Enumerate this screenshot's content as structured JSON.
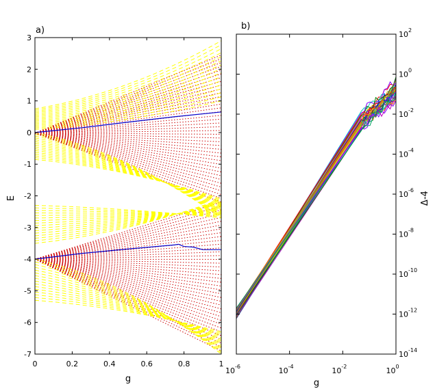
{
  "chart_data": [
    {
      "panel_label": "a)",
      "type": "line",
      "xlabel": "g",
      "ylabel": "E",
      "xlim": [
        0,
        1
      ],
      "ylim": [
        -7,
        3
      ],
      "x_ticks": [
        "0",
        "0.2",
        "0.4",
        "0.6",
        "0.8",
        "1"
      ],
      "y_ticks": [
        "3",
        "2",
        "1",
        "0",
        "-1",
        "-2",
        "-3",
        "-4",
        "-5",
        "-6",
        "-7"
      ],
      "grid": false,
      "colors": {
        "solid": "#0000cc",
        "dotted": "#cc0000",
        "dashed": "#ffff00"
      },
      "series": [
        {
          "style": "solid",
          "color": "#0000cc",
          "points": [
            [
              0,
              0.0
            ],
            [
              0.25,
              0.15
            ],
            [
              0.5,
              0.33
            ],
            [
              0.75,
              0.5
            ],
            [
              1,
              0.65
            ]
          ]
        },
        {
          "style": "solid",
          "color": "#0000cc",
          "points": [
            [
              0,
              -4.0
            ],
            [
              0.25,
              -3.82
            ],
            [
              0.5,
              -3.68
            ],
            [
              0.75,
              -3.55
            ],
            [
              0.77,
              -3.53
            ],
            [
              0.8,
              -3.6
            ],
            [
              0.85,
              -3.62
            ],
            [
              0.9,
              -3.7
            ],
            [
              1,
              -3.7
            ]
          ]
        },
        {
          "style": "dotted-fan",
          "color": "#cc0000",
          "origin": [
            0,
            -0.02
          ],
          "endpoints_at_g1": [
            2.45,
            -2.2
          ],
          "count": 40
        },
        {
          "style": "dotted-fan",
          "color": "#cc0000",
          "origin": [
            0,
            -4.0
          ],
          "endpoints_at_g1": [
            -2.2,
            -6.9
          ],
          "count": 40
        },
        {
          "style": "dashed-band",
          "color": "#ffff00",
          "origin_range": [
            0.1,
            0.75
          ],
          "end_range_at_g1": [
            1.0,
            2.9
          ],
          "count": 16
        },
        {
          "style": "dashed-band",
          "color": "#ffff00",
          "origin_range": [
            -0.85,
            0.0
          ],
          "end_range_at_g1": [
            -2.1,
            -2.7
          ],
          "count": 16
        },
        {
          "style": "dashed-band",
          "color": "#ffff00",
          "origin_range": [
            -3.5,
            -2.3
          ],
          "end_range_at_g1": [
            -2.1,
            -2.7
          ],
          "count": 16
        },
        {
          "style": "dashed-band",
          "color": "#ffff00",
          "origin_range": [
            -5.3,
            -4.0
          ],
          "end_range_at_g1": [
            -6.3,
            -7.0
          ],
          "count": 16
        }
      ]
    },
    {
      "panel_label": "b)",
      "type": "line",
      "xlabel": "g",
      "ylabel": "Δ-4",
      "xscale": "log",
      "yscale": "log",
      "xlim": [
        1e-06,
        1
      ],
      "ylim": [
        1e-14,
        100
      ],
      "x_ticks": [
        {
          "base": "10",
          "exp": "-6",
          "value": 1e-06
        },
        {
          "base": "10",
          "exp": "-4",
          "value": 0.0001
        },
        {
          "base": "10",
          "exp": "-2",
          "value": 0.01
        },
        {
          "base": "10",
          "exp": "0",
          "value": 1
        }
      ],
      "y_ticks": [
        {
          "base": "10",
          "exp": "2",
          "value": 100
        },
        {
          "base": "10",
          "exp": "0",
          "value": 1
        },
        {
          "base": "10",
          "exp": "-2",
          "value": 0.01
        },
        {
          "base": "10",
          "exp": "-4",
          "value": 0.0001
        },
        {
          "base": "10",
          "exp": "-6",
          "value": 1e-06
        },
        {
          "base": "10",
          "exp": "-8",
          "value": 1e-08
        },
        {
          "base": "10",
          "exp": "-10",
          "value": 1e-10
        },
        {
          "base": "10",
          "exp": "-12",
          "value": 1e-12
        },
        {
          "base": "10",
          "exp": "-14",
          "value": 1e-14
        }
      ],
      "grid": false,
      "series_colors": [
        "#0000ff",
        "#008000",
        "#ff0000",
        "#00bfbf",
        "#bf00bf",
        "#bfbf00",
        "#404040",
        "#ff8000",
        "#8000ff",
        "#00a060"
      ],
      "bundle": {
        "count": 30,
        "start": {
          "g": 1e-06,
          "value_range": [
            6e-13,
            2e-12
          ]
        },
        "knee": {
          "g": 0.05,
          "value_range": [
            0.0015,
            0.015
          ]
        },
        "end": {
          "g": 1,
          "value_range": [
            0.05,
            0.5
          ]
        }
      }
    }
  ]
}
